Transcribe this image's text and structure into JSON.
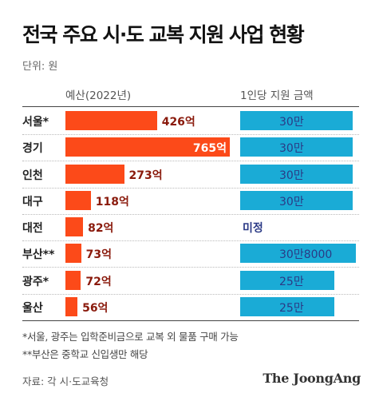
{
  "title": "전국 주요 시·도 교복 지원 사업 현황",
  "unit": "단위: 원",
  "headers": {
    "budget": "예산(2022년)",
    "per_person": "1인당 지원 금액"
  },
  "colors": {
    "budget_bar": "#fc4a19",
    "per_person_bar": "#1aabd6",
    "budget_label": "#8a1a0c",
    "per_person_label": "#2b3a86"
  },
  "chart_data": {
    "type": "bar",
    "title": "전국 주요 시·도 교복 지원 사업 현황",
    "unit": "원",
    "categories": [
      "서울*",
      "경기",
      "인천",
      "대구",
      "대전",
      "부산**",
      "광주*",
      "울산"
    ],
    "series": [
      {
        "name": "예산(2022년)",
        "values": [
          426,
          765,
          273,
          118,
          82,
          73,
          72,
          56
        ],
        "labels": [
          "426억",
          "765억",
          "273억",
          "118억",
          "82억",
          "73억",
          "72억",
          "56억"
        ]
      },
      {
        "name": "1인당 지원 금액",
        "values": [
          300000,
          300000,
          300000,
          300000,
          null,
          308000,
          250000,
          250000
        ],
        "labels": [
          "30만",
          "30만",
          "30만",
          "30만",
          "미정",
          "30만8000",
          "25만",
          "25만"
        ]
      }
    ]
  },
  "notes": [
    "*서울, 광주는 입학준비금으로 교복 외 물품 구매 가능",
    "**부산은 중학교 신입생만 해당"
  ],
  "source": "자료: 각 시·도교육청",
  "logo": "The JoongAng"
}
